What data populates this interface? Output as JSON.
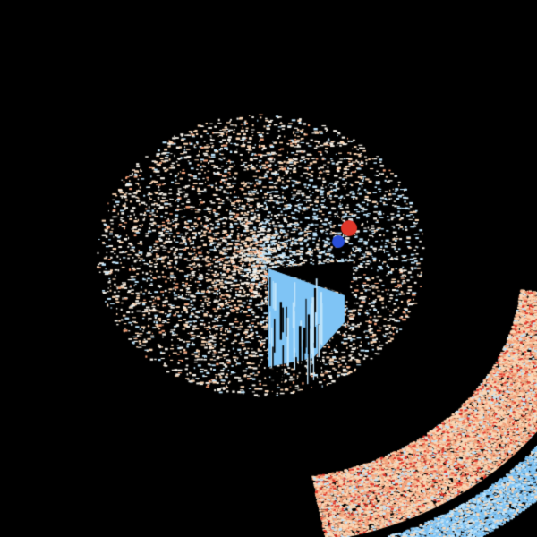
{
  "image": {
    "kind": "doppler-radar-velocity",
    "background": "#000000",
    "palette": {
      "inbound_strong": "#2a4fd8",
      "inbound": "#7fc4f5",
      "inbound_light": "#bfe4fb",
      "neutral": "#f4efe6",
      "outbound_light": "#fbd6b4",
      "outbound": "#f4a27a",
      "outbound_strong": "#e0362a"
    }
  }
}
